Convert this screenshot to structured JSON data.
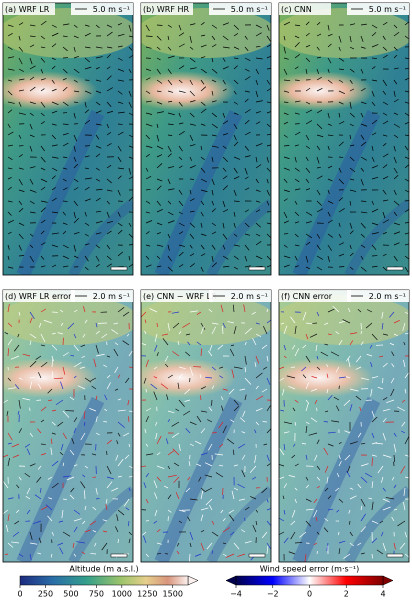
{
  "panels": [
    {
      "title": "(a) WRF LR",
      "scale_label": "5.0 m s⁻¹"
    },
    {
      "title": "(b) WRF HR",
      "scale_label": "5.0 m s⁻¹"
    },
    {
      "title": "(c) CNN",
      "scale_label": "5.0 m s⁻¹"
    },
    {
      "title": "(d) WRF LR error",
      "scale_label": "2.0 m s⁻¹"
    },
    {
      "title": "(e) CNN − WRF LR",
      "scale_label": "2.0 m s⁻¹"
    },
    {
      "title": "(f) CNN error",
      "scale_label": "2.0 m s⁻¹"
    }
  ],
  "colorbars": [
    {
      "label": "Altitude (m a.s.l.)",
      "lim": [
        0,
        1650
      ],
      "ticks": [
        0,
        250,
        500,
        750,
        1000,
        1250,
        1500
      ]
    },
    {
      "label": "Wind speed error (m·s⁻¹)",
      "lim": [
        -4,
        4
      ],
      "ticks": [
        {
          "value": -4,
          "label": "−4"
        },
        {
          "value": -2,
          "label": "−2"
        },
        0,
        2,
        4
      ]
    }
  ]
}
